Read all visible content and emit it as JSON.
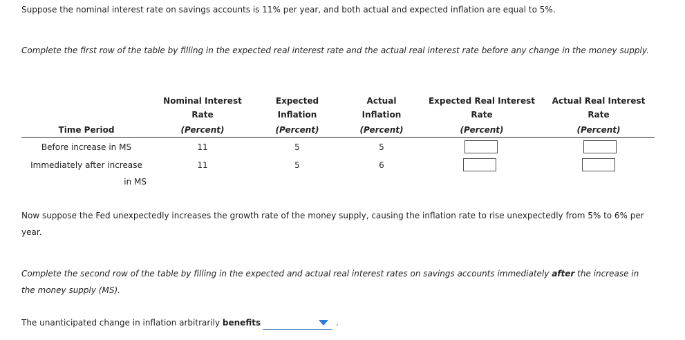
{
  "intro": {
    "text": "Suppose the nominal interest rate on savings accounts is 11% per year, and both actual and expected inflation are equal to 5%."
  },
  "instruction1": {
    "text": "Complete the first row of the table by filling in the expected real interest rate and the actual real interest rate before any change in the money supply."
  },
  "table": {
    "headers": {
      "time_period": "Time Period",
      "nominal_line1": "Nominal Interest",
      "nominal_line2": "Rate",
      "expected_infl_line1": "Expected",
      "expected_infl_line2": "Inflation",
      "actual_infl_line1": "Actual",
      "actual_infl_line2": "Inflation",
      "exp_real_line1": "Expected Real Interest",
      "exp_real_line2": "Rate",
      "act_real_line1": "Actual Real Interest",
      "act_real_line2": "Rate",
      "percent": "(Percent)"
    },
    "rows": [
      {
        "label_line1": "Before increase in MS",
        "label_line2": "",
        "nominal": "11",
        "expected_inflation": "5",
        "actual_inflation": "5",
        "expected_real": "",
        "actual_real": ""
      },
      {
        "label_line1": "Immediately after increase",
        "label_line2": "in MS",
        "nominal": "11",
        "expected_inflation": "5",
        "actual_inflation": "6",
        "expected_real": "",
        "actual_real": ""
      }
    ]
  },
  "paragraph2": {
    "line1": "Now suppose the Fed unexpectedly increases the growth rate of the money supply, causing the inflation rate to rise unexpectedly from 5% to 6% per",
    "line2": "year."
  },
  "instruction2": {
    "part1": "Complete the second row of the table by filling in the expected and actual real interest rates on savings accounts immediately ",
    "emphasis": "after",
    "part2": " the increase in",
    "line2": "the money supply (MS)."
  },
  "question": {
    "prefix": "The unanticipated change in inflation arbitrarily ",
    "emphasis": "benefits",
    "dropdown_value": "",
    "suffix": "."
  },
  "colors": {
    "dropdown_underline": "#2b6cb0",
    "dropdown_caret": "#2b7cd3",
    "text": "#222222"
  }
}
